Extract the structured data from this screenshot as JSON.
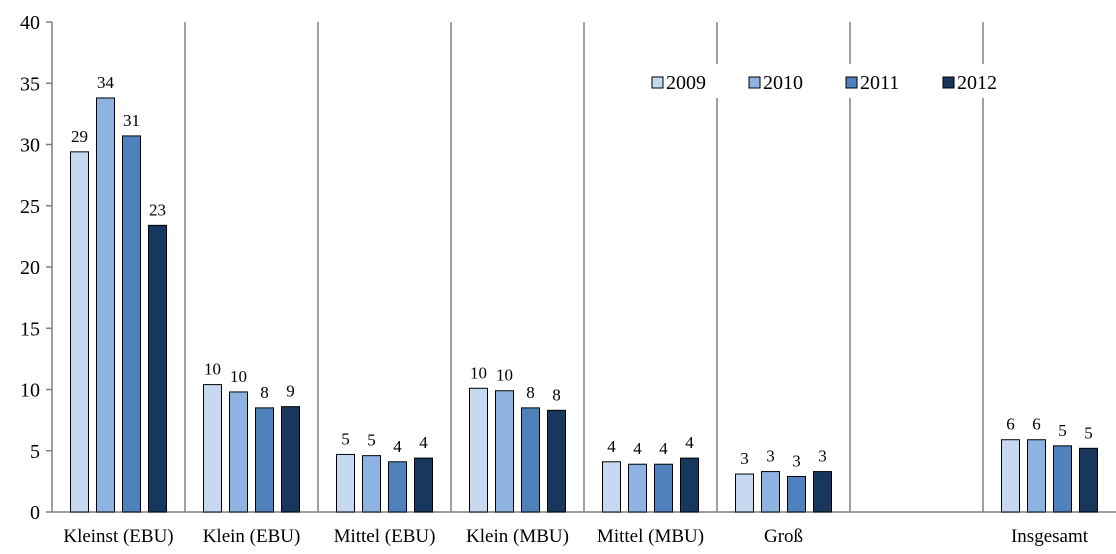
{
  "chart_data": {
    "type": "bar",
    "title": "",
    "xlabel": "",
    "ylabel": "",
    "ylim": [
      0,
      40
    ],
    "yticks": [
      0,
      5,
      10,
      15,
      20,
      25,
      30,
      35,
      40
    ],
    "grid": false,
    "group_separators": true,
    "legend_placement": "top-right",
    "categories": [
      "Kleinst (EBU)",
      "Klein (EBU)",
      "Mittel (EBU)",
      "Klein (MBU)",
      "Mittel (MBU)",
      "Groß",
      "",
      "Insgesamt"
    ],
    "series": [
      {
        "name": "2009",
        "color": "#c6d9f1",
        "values": [
          29.4,
          10.4,
          4.7,
          10.1,
          4.1,
          3.1,
          null,
          5.9
        ],
        "labels": [
          "29",
          "10",
          "5",
          "10",
          "4",
          "3",
          "",
          "6"
        ]
      },
      {
        "name": "2010",
        "color": "#8db3e2",
        "values": [
          33.8,
          9.8,
          4.6,
          9.9,
          3.9,
          3.3,
          null,
          5.9
        ],
        "labels": [
          "34",
          "10",
          "5",
          "10",
          "4",
          "3",
          "",
          "6"
        ]
      },
      {
        "name": "2011",
        "color": "#4f81bd",
        "values": [
          30.7,
          8.5,
          4.1,
          8.5,
          3.9,
          2.9,
          null,
          5.4
        ],
        "labels": [
          "31",
          "8",
          "4",
          "8",
          "4",
          "3",
          "",
          "5"
        ]
      },
      {
        "name": "2012",
        "color": "#17375e",
        "values": [
          23.4,
          8.6,
          4.4,
          8.3,
          4.4,
          3.3,
          null,
          5.2
        ],
        "labels": [
          "23",
          "9",
          "4",
          "8",
          "4",
          "3",
          "",
          "5"
        ]
      }
    ],
    "colors": {
      "axis": "#7f7f7f",
      "separator": "#808080",
      "bar_border": "#000000"
    }
  }
}
